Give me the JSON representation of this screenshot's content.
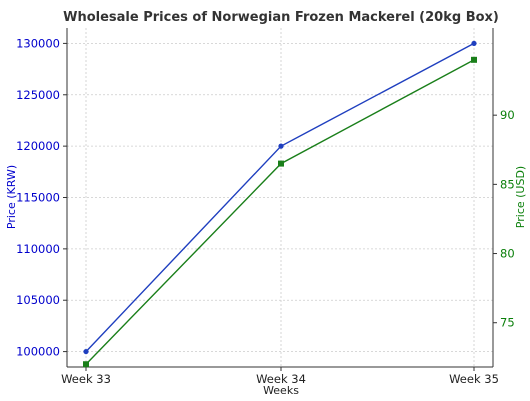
{
  "chart_data": {
    "type": "line",
    "title": "Wholesale Prices of Norwegian Frozen Mackerel (20kg Box)",
    "xlabel": "Weeks",
    "ylabel_left": "Price (KRW)",
    "ylabel_right": "Price (USD)",
    "categories": [
      "Week 33",
      "Week 34",
      "Week 35"
    ],
    "y_left_ticks": [
      "100000",
      "105000",
      "110000",
      "115000",
      "120000",
      "125000",
      "130000"
    ],
    "y_left_lim": [
      98500,
      131500
    ],
    "y_right_ticks": [
      "75",
      "80",
      "85",
      "90"
    ],
    "y_right_lim": [
      71.8,
      96.3
    ],
    "grid": true,
    "series": [
      {
        "axis": "left",
        "color": "#1f3fbf",
        "values": [
          100000,
          120000,
          130000
        ]
      },
      {
        "axis": "right",
        "color": "#1a7f1a",
        "values": [
          72.0,
          86.5,
          94.0
        ]
      }
    ],
    "colors": {
      "left_axis": "#0000cc",
      "right_axis": "#0a7f0a",
      "title": "#333333"
    }
  }
}
